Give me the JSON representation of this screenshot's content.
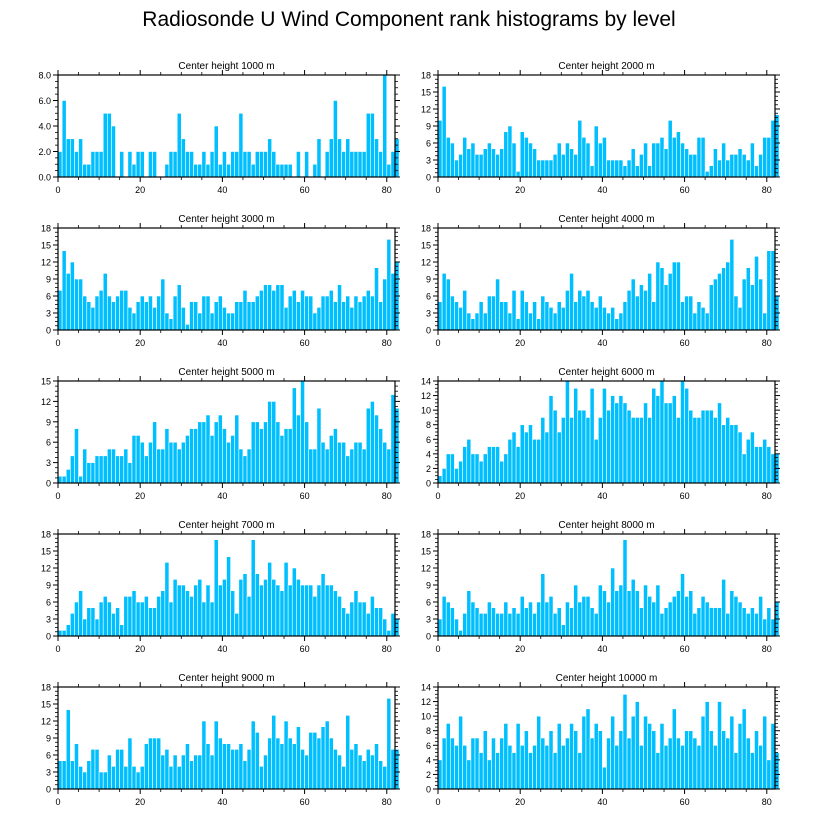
{
  "title": "Radiosonde U Wind Component rank histograms by level",
  "colors": {
    "bar": "#00BFFF",
    "bar_edge": "#ffffff",
    "axis": "#000000"
  },
  "chart_data": [
    {
      "type": "bar",
      "title": "Center height 1000 m",
      "xlim": [
        0,
        82
      ],
      "ylim": [
        0,
        8
      ],
      "yticks": [
        0,
        2,
        4,
        6,
        8
      ],
      "ytick_labels": [
        "0.0",
        "2.0",
        "4.0",
        "6.0",
        "8.0"
      ],
      "xticks": [
        0,
        20,
        40,
        60,
        80
      ],
      "xtick_labels": [
        "0",
        "20",
        "40",
        "60",
        "80"
      ],
      "values": [
        2,
        6,
        3,
        3,
        2,
        3,
        1,
        1,
        2,
        2,
        2,
        5,
        5,
        4,
        0,
        2,
        0,
        2,
        1,
        2,
        2,
        0,
        2,
        2,
        0,
        0,
        1,
        2,
        2,
        5,
        3,
        2,
        2,
        1,
        1,
        2,
        1,
        2,
        4,
        1,
        2,
        1,
        2,
        2,
        5,
        2,
        2,
        1,
        2,
        2,
        2,
        3,
        2,
        1,
        1,
        1,
        1,
        0,
        2,
        0,
        2,
        0,
        1,
        3,
        0,
        2,
        3,
        6,
        3,
        2,
        3,
        2,
        2,
        2,
        2,
        5,
        5,
        3,
        2,
        8,
        1,
        2,
        3
      ]
    },
    {
      "type": "bar",
      "title": "Center height 2000 m",
      "xlim": [
        0,
        82
      ],
      "ylim": [
        0,
        18
      ],
      "yticks": [
        0,
        3,
        6,
        9,
        12,
        15,
        18
      ],
      "ytick_labels": [
        "0",
        "3",
        "6",
        "9",
        "12",
        "15",
        "18"
      ],
      "xticks": [
        0,
        20,
        40,
        60,
        80
      ],
      "xtick_labels": [
        "0",
        "20",
        "40",
        "60",
        "80"
      ],
      "values": [
        10,
        16,
        7,
        6,
        3,
        4,
        7,
        5,
        6,
        4,
        4,
        5,
        6,
        5,
        4,
        5,
        8,
        9,
        6,
        1,
        8,
        7,
        6,
        5,
        3,
        3,
        3,
        3,
        4,
        6,
        4,
        6,
        5,
        4,
        10,
        7,
        6,
        2,
        9,
        6,
        7,
        3,
        3,
        3,
        3,
        2,
        3,
        5,
        2,
        4,
        6,
        2,
        6,
        6,
        7,
        5,
        10,
        7,
        8,
        6,
        5,
        4,
        4,
        7,
        7,
        1,
        2,
        5,
        3,
        6,
        3,
        4,
        4,
        5,
        4,
        3,
        6,
        2,
        4,
        7,
        7,
        10,
        11
      ]
    },
    {
      "type": "bar",
      "title": "Center height 3000 m",
      "xlim": [
        0,
        82
      ],
      "ylim": [
        0,
        18
      ],
      "yticks": [
        0,
        3,
        6,
        9,
        12,
        15,
        18
      ],
      "ytick_labels": [
        "0",
        "3",
        "6",
        "9",
        "12",
        "15",
        "18"
      ],
      "xticks": [
        0,
        20,
        40,
        60,
        80
      ],
      "xtick_labels": [
        "0",
        "20",
        "40",
        "60",
        "80"
      ],
      "values": [
        7,
        14,
        10,
        12,
        9,
        9,
        6,
        5,
        4,
        6,
        7,
        10,
        6,
        5,
        6,
        7,
        7,
        4,
        3,
        5,
        6,
        5,
        6,
        4,
        6,
        9,
        3,
        2,
        6,
        8,
        4,
        1,
        5,
        5,
        3,
        6,
        6,
        3,
        5,
        6,
        4,
        3,
        3,
        5,
        5,
        7,
        5,
        5,
        6,
        7,
        8,
        8,
        7,
        8,
        8,
        4,
        6,
        7,
        5,
        7,
        6,
        6,
        3,
        4,
        6,
        6,
        7,
        5,
        8,
        5,
        6,
        4,
        6,
        5,
        6,
        7,
        6,
        11,
        5,
        9,
        16,
        10,
        12
      ]
    },
    {
      "type": "bar",
      "title": "Center height 4000 m",
      "xlim": [
        0,
        82
      ],
      "ylim": [
        0,
        18
      ],
      "yticks": [
        0,
        3,
        6,
        9,
        12,
        15,
        18
      ],
      "ytick_labels": [
        "0",
        "3",
        "6",
        "9",
        "12",
        "15",
        "18"
      ],
      "xticks": [
        0,
        20,
        40,
        60,
        80
      ],
      "xtick_labels": [
        "0",
        "20",
        "40",
        "60",
        "80"
      ],
      "values": [
        5,
        10,
        9,
        6,
        5,
        4,
        7,
        3,
        2,
        3,
        5,
        3,
        6,
        6,
        9,
        5,
        5,
        3,
        7,
        2,
        7,
        5,
        3,
        5,
        2,
        6,
        5,
        4,
        3,
        5,
        4,
        7,
        10,
        5,
        7,
        6,
        7,
        5,
        4,
        6,
        4,
        3,
        4,
        2,
        3,
        5,
        7,
        9,
        6,
        8,
        7,
        10,
        5,
        12,
        11,
        8,
        10,
        12,
        12,
        5,
        6,
        6,
        3,
        5,
        4,
        3,
        8,
        9,
        10,
        11,
        12,
        16,
        6,
        4,
        9,
        11,
        8,
        13,
        9,
        3,
        14,
        14,
        6
      ]
    },
    {
      "type": "bar",
      "title": "Center height 5000 m",
      "xlim": [
        0,
        82
      ],
      "ylim": [
        0,
        15
      ],
      "yticks": [
        0,
        3,
        6,
        9,
        12,
        15
      ],
      "ytick_labels": [
        "0",
        "3",
        "6",
        "9",
        "12",
        "15"
      ],
      "xticks": [
        0,
        20,
        40,
        60,
        80
      ],
      "xtick_labels": [
        "0",
        "20",
        "40",
        "60",
        "80"
      ],
      "values": [
        1,
        1,
        2,
        4,
        8,
        1,
        5,
        3,
        3,
        4,
        4,
        4,
        5,
        5,
        4,
        4,
        5,
        3,
        7,
        7,
        6,
        4,
        6,
        9,
        5,
        5,
        8,
        6,
        6,
        5,
        6,
        7,
        8,
        8,
        9,
        9,
        10,
        7,
        9,
        10,
        8,
        6,
        7,
        10,
        5,
        4,
        5,
        9,
        9,
        8,
        9,
        12,
        12,
        9,
        7,
        8,
        8,
        14,
        10,
        15,
        9,
        5,
        5,
        11,
        6,
        5,
        7,
        8,
        6,
        6,
        4,
        5,
        6,
        6,
        5,
        11,
        12,
        10,
        8,
        6,
        5,
        13,
        11
      ]
    },
    {
      "type": "bar",
      "title": "Center height 6000 m",
      "xlim": [
        0,
        82
      ],
      "ylim": [
        0,
        14
      ],
      "yticks": [
        0,
        2,
        4,
        6,
        8,
        10,
        12,
        14
      ],
      "ytick_labels": [
        "0",
        "2",
        "4",
        "6",
        "8",
        "10",
        "12",
        "14"
      ],
      "xticks": [
        0,
        20,
        40,
        60,
        80
      ],
      "xtick_labels": [
        "0",
        "20",
        "40",
        "60",
        "80"
      ],
      "values": [
        1,
        2,
        4,
        4,
        2,
        3,
        5,
        6,
        4,
        4,
        3,
        4,
        5,
        5,
        5,
        3,
        4,
        6,
        7,
        5,
        8,
        7,
        8,
        6,
        6,
        9,
        7,
        12,
        10,
        7,
        9,
        14,
        9,
        13,
        10,
        10,
        9,
        13,
        6,
        9,
        13,
        10,
        12,
        11,
        12,
        11,
        10,
        9,
        9,
        9,
        11,
        9,
        13,
        12,
        14,
        11,
        11,
        12,
        9,
        14,
        13,
        10,
        9,
        9,
        10,
        10,
        10,
        9,
        11,
        8,
        9,
        8,
        8,
        7,
        4,
        6,
        7,
        5,
        5,
        6,
        5,
        4,
        4
      ]
    },
    {
      "type": "bar",
      "title": "Center height 7000 m",
      "xlim": [
        0,
        82
      ],
      "ylim": [
        0,
        18
      ],
      "yticks": [
        0,
        3,
        6,
        9,
        12,
        15,
        18
      ],
      "ytick_labels": [
        "0",
        "3",
        "6",
        "9",
        "12",
        "15",
        "18"
      ],
      "xticks": [
        0,
        20,
        40,
        60,
        80
      ],
      "xtick_labels": [
        "0",
        "20",
        "40",
        "60",
        "80"
      ],
      "values": [
        1,
        1,
        2,
        4,
        6,
        8,
        3,
        5,
        5,
        3,
        6,
        7,
        6,
        4,
        5,
        2,
        7,
        7,
        8,
        6,
        6,
        7,
        5,
        5,
        7,
        8,
        13,
        6,
        10,
        9,
        9,
        8,
        7,
        9,
        10,
        6,
        9,
        6,
        17,
        9,
        10,
        14,
        8,
        4,
        10,
        11,
        7,
        17,
        11,
        9,
        10,
        13,
        10,
        9,
        8,
        13,
        9,
        12,
        10,
        9,
        9,
        9,
        7,
        9,
        11,
        9,
        9,
        8,
        7,
        5,
        4,
        6,
        8,
        6,
        6,
        4,
        7,
        5,
        5,
        3,
        1,
        4,
        3
      ]
    },
    {
      "type": "bar",
      "title": "Center height 8000 m",
      "xlim": [
        0,
        82
      ],
      "ylim": [
        0,
        18
      ],
      "yticks": [
        0,
        3,
        6,
        9,
        12,
        15,
        18
      ],
      "ytick_labels": [
        "0",
        "3",
        "6",
        "9",
        "12",
        "15",
        "18"
      ],
      "xticks": [
        0,
        20,
        40,
        60,
        80
      ],
      "xtick_labels": [
        "0",
        "20",
        "40",
        "60",
        "80"
      ],
      "values": [
        3,
        7,
        6,
        5,
        3,
        1,
        4,
        8,
        6,
        5,
        4,
        4,
        6,
        5,
        4,
        4,
        6,
        4,
        5,
        4,
        7,
        5,
        6,
        4,
        6,
        11,
        6,
        7,
        4,
        5,
        2,
        6,
        5,
        9,
        6,
        7,
        7,
        5,
        4,
        9,
        8,
        6,
        12,
        8,
        9,
        17,
        8,
        10,
        8,
        5,
        9,
        7,
        6,
        9,
        4,
        5,
        6,
        7,
        8,
        11,
        7,
        8,
        4,
        5,
        7,
        6,
        5,
        5,
        5,
        10,
        4,
        8,
        7,
        6,
        5,
        4,
        5,
        4,
        7,
        3,
        5,
        3,
        6
      ]
    },
    {
      "type": "bar",
      "title": "Center height 9000 m",
      "xlim": [
        0,
        82
      ],
      "ylim": [
        0,
        18
      ],
      "yticks": [
        0,
        3,
        6,
        9,
        12,
        15,
        18
      ],
      "ytick_labels": [
        "0",
        "3",
        "6",
        "9",
        "12",
        "15",
        "18"
      ],
      "xticks": [
        0,
        20,
        40,
        60,
        80
      ],
      "xtick_labels": [
        "0",
        "20",
        "40",
        "60",
        "80"
      ],
      "values": [
        5,
        5,
        14,
        5,
        8,
        4,
        3,
        5,
        7,
        7,
        3,
        3,
        6,
        4,
        7,
        7,
        4,
        9,
        4,
        3,
        4,
        8,
        9,
        9,
        9,
        6,
        7,
        4,
        6,
        4,
        6,
        8,
        5,
        6,
        6,
        12,
        8,
        6,
        12,
        9,
        8,
        8,
        7,
        7,
        8,
        5,
        7,
        12,
        10,
        4,
        6,
        9,
        13,
        9,
        8,
        12,
        9,
        8,
        11,
        7,
        6,
        10,
        10,
        9,
        11,
        12,
        9,
        7,
        6,
        4,
        13,
        7,
        8,
        6,
        5,
        7,
        6,
        8,
        5,
        4,
        16,
        7,
        7
      ]
    },
    {
      "type": "bar",
      "title": "Center height 10000 m",
      "xlim": [
        0,
        82
      ],
      "ylim": [
        0,
        14
      ],
      "yticks": [
        0,
        2,
        4,
        6,
        8,
        10,
        12,
        14
      ],
      "ytick_labels": [
        "0",
        "2",
        "4",
        "6",
        "8",
        "10",
        "12",
        "14"
      ],
      "xticks": [
        0,
        20,
        40,
        60,
        80
      ],
      "xtick_labels": [
        "0",
        "20",
        "40",
        "60",
        "80"
      ],
      "values": [
        4,
        7,
        9,
        7,
        6,
        10,
        6,
        4,
        7,
        7,
        5,
        8,
        4,
        7,
        5,
        7,
        9,
        6,
        5,
        9,
        6,
        8,
        5,
        6,
        10,
        7,
        6,
        8,
        5,
        9,
        6,
        7,
        9,
        8,
        5,
        10,
        11,
        7,
        9,
        8,
        3,
        7,
        10,
        6,
        8,
        13,
        7,
        10,
        12,
        6,
        10,
        9,
        8,
        5,
        9,
        6,
        7,
        11,
        7,
        6,
        8,
        8,
        7,
        6,
        10,
        12,
        8,
        6,
        12,
        8,
        7,
        10,
        5,
        9,
        11,
        7,
        5,
        8,
        6,
        10,
        4,
        9,
        5
      ]
    }
  ]
}
